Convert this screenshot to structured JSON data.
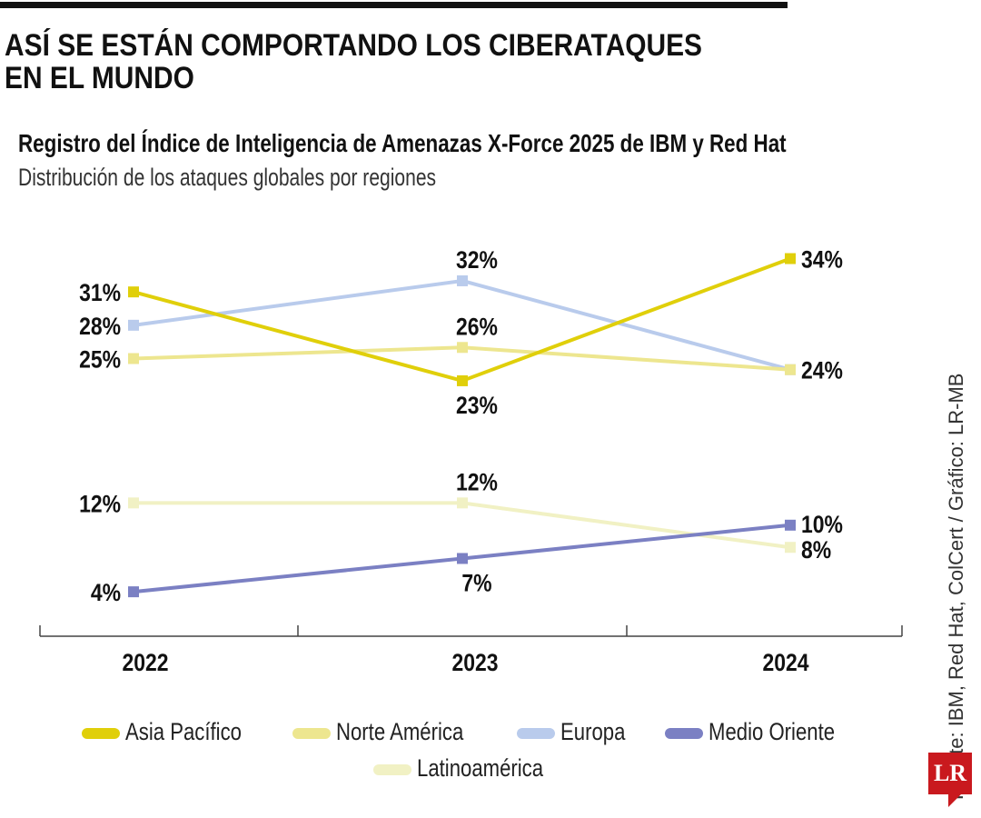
{
  "header": {
    "title": "ASÍ SE ESTÁN COMPORTANDO LOS CIBERATAQUES EN EL MUNDO",
    "subtitle": "Registro del Índice de Inteligencia de Amenazas X-Force 2025 de IBM y Red Hat",
    "description": "Distribución de los ataques globales por regiones"
  },
  "chart_data": {
    "type": "line",
    "x": [
      "2022",
      "2023",
      "2024"
    ],
    "ylim": [
      0,
      35
    ],
    "grid": false,
    "legend_placement": "bottom",
    "series": [
      {
        "name": "Asia Pacífico",
        "color": "#e0cf0a",
        "values": [
          31,
          23,
          34
        ]
      },
      {
        "name": "Norte América",
        "color": "#ede68f",
        "values": [
          25,
          26,
          24
        ]
      },
      {
        "name": "Europa",
        "color": "#b9cbec",
        "values": [
          28,
          32,
          24
        ]
      },
      {
        "name": "Medio Oriente",
        "color": "#7b80c3",
        "values": [
          4,
          7,
          10
        ]
      },
      {
        "name": "Latinoamérica",
        "color": "#f1f1c4",
        "values": [
          12,
          12,
          8
        ]
      }
    ],
    "data_labels": [
      {
        "x": "2022",
        "text": "31%",
        "value": 31
      },
      {
        "x": "2022",
        "text": "28%",
        "value": 28
      },
      {
        "x": "2022",
        "text": "25%",
        "value": 25
      },
      {
        "x": "2022",
        "text": "12%",
        "value": 12
      },
      {
        "x": "2022",
        "text": "4%",
        "value": 4
      },
      {
        "x": "2023",
        "text": "32%",
        "value": 32,
        "pos": "above"
      },
      {
        "x": "2023",
        "text": "26%",
        "value": 26,
        "pos": "above"
      },
      {
        "x": "2023",
        "text": "23%",
        "value": 23,
        "pos": "below"
      },
      {
        "x": "2023",
        "text": "12%",
        "value": 12,
        "pos": "above"
      },
      {
        "x": "2023",
        "text": "7%",
        "value": 7,
        "pos": "below"
      },
      {
        "x": "2024",
        "text": "34%",
        "value": 34
      },
      {
        "x": "2024",
        "text": "24%",
        "value": 24
      },
      {
        "x": "2024",
        "text": "10%",
        "value": 10
      },
      {
        "x": "2024",
        "text": "8%",
        "value": 8
      }
    ]
  },
  "source": "Fuente: IBM, Red Hat, ColCert / Gráfico: LR-MB",
  "logo": "LR"
}
